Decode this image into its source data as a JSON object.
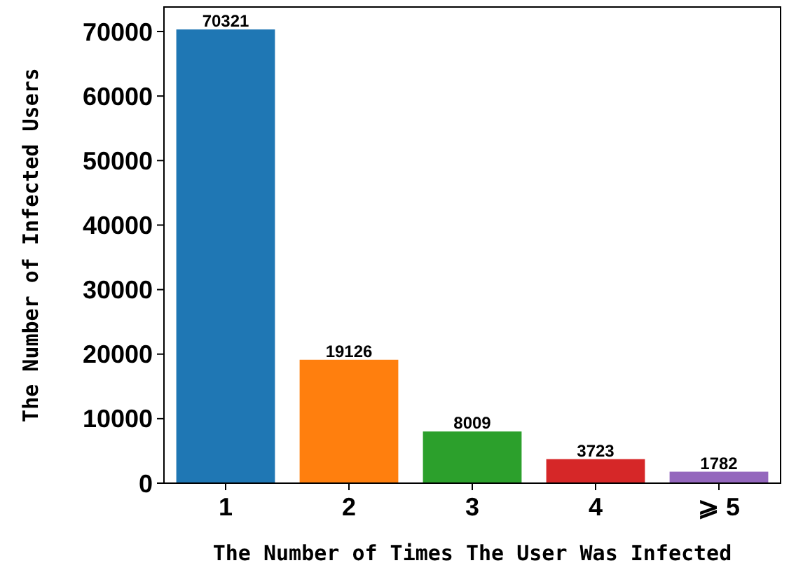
{
  "chart_data": {
    "type": "bar",
    "xlabel": "The Number of Times The User Was Infected",
    "ylabel": "The Number of Infected Users",
    "categories": [
      "1",
      "2",
      "3",
      "4",
      "⩾ 5"
    ],
    "values": [
      70321,
      19126,
      8009,
      3723,
      1782
    ],
    "colors": [
      "#1f77b4",
      "#ff7f0e",
      "#2ca02c",
      "#d62728",
      "#9467bd"
    ],
    "ylim": [
      0,
      73800
    ],
    "yticks": [
      0,
      10000,
      20000,
      30000,
      40000,
      50000,
      60000,
      70000
    ],
    "data_labels": true,
    "grid": false
  }
}
